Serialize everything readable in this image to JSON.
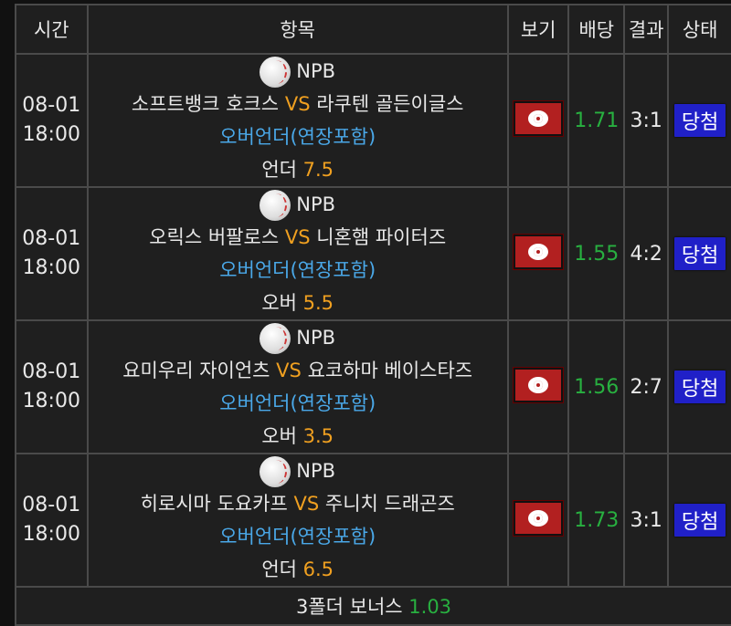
{
  "headers": [
    "시간",
    "항목",
    "보기",
    "배당",
    "결과",
    "상태"
  ],
  "rows": [
    {
      "date": "08-01",
      "time": "18:00",
      "league": "NPB",
      "home": "소프트뱅크 호크스",
      "vs": "VS",
      "away": "라쿠텐 골든이글스",
      "market": "오버언더(연장포함)",
      "pick": "언더",
      "line": "7.5",
      "odds": "1.71",
      "result": "3:1",
      "status": "당첨"
    },
    {
      "date": "08-01",
      "time": "18:00",
      "league": "NPB",
      "home": "오릭스 버팔로스",
      "vs": "VS",
      "away": "니혼햄 파이터즈",
      "market": "오버언더(연장포함)",
      "pick": "오버",
      "line": "5.5",
      "odds": "1.55",
      "result": "4:2",
      "status": "당첨"
    },
    {
      "date": "08-01",
      "time": "18:00",
      "league": "NPB",
      "home": "요미우리 자이언츠",
      "vs": "VS",
      "away": "요코하마 베이스타즈",
      "market": "오버언더(연장포함)",
      "pick": "오버",
      "line": "3.5",
      "odds": "1.56",
      "result": "2:7",
      "status": "당첨"
    },
    {
      "date": "08-01",
      "time": "18:00",
      "league": "NPB",
      "home": "히로시마 도요카프",
      "vs": "VS",
      "away": "주니치 드래곤즈",
      "market": "오버언더(연장포함)",
      "pick": "언더",
      "line": "6.5",
      "odds": "1.73",
      "result": "3:1",
      "status": "당첨"
    }
  ],
  "bonus": {
    "label": "3폴더 보너스",
    "value": "1.03"
  },
  "colors": {
    "accent_orange": "#f0a020",
    "market_blue": "#4aa8e8",
    "odds_green": "#28b040",
    "status_blue": "#2020c8",
    "view_red": "#b22020"
  }
}
